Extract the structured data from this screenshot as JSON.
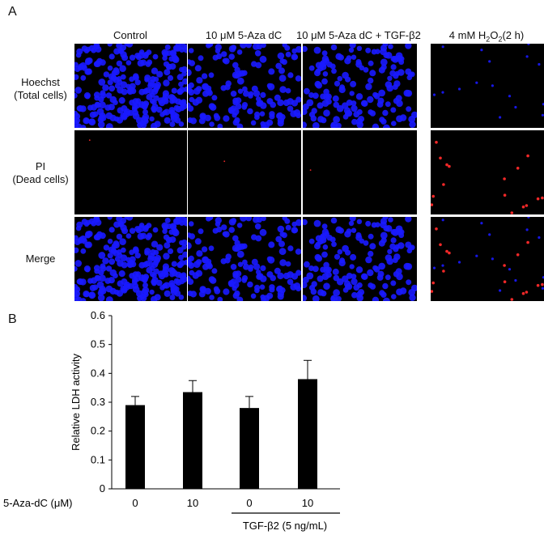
{
  "panel_a": {
    "letter": "A",
    "columns": [
      "Control",
      "10 μM 5-Aza dC",
      "10 μM 5-Aza dC + TGF-β2"
    ],
    "last_column": {
      "pre": "4 mM H",
      "sub1": "2",
      "mid": "O",
      "sub2": "2",
      "post": "(2 h)"
    },
    "rows": [
      {
        "line1": "Hoechst",
        "line2": "(Total cells)"
      },
      {
        "line1": "PI",
        "line2": "(Dead cells)"
      },
      {
        "line1": "Merge",
        "line2": ""
      }
    ]
  },
  "panel_b": {
    "letter": "B",
    "below_axis_label": "5-Aza-dC (μM)",
    "group_label": "TGF-β2 (5 ng/mL)"
  },
  "chart_data": {
    "type": "bar",
    "categories": [
      "0",
      "10",
      "0",
      "10"
    ],
    "values": [
      0.29,
      0.335,
      0.28,
      0.38
    ],
    "errors": [
      0.03,
      0.04,
      0.04,
      0.065
    ],
    "ylabel": "Relative LDH activity",
    "ylim": [
      0,
      0.6
    ],
    "yticks": [
      "0",
      "0.1",
      "0.2",
      "0.3",
      "0.4",
      "0.5",
      "0.6"
    ],
    "bar_color": "#000000"
  },
  "colors": {
    "hoechst": "#1a1aff",
    "pi": "#ff2a2a",
    "background": "#000000"
  }
}
